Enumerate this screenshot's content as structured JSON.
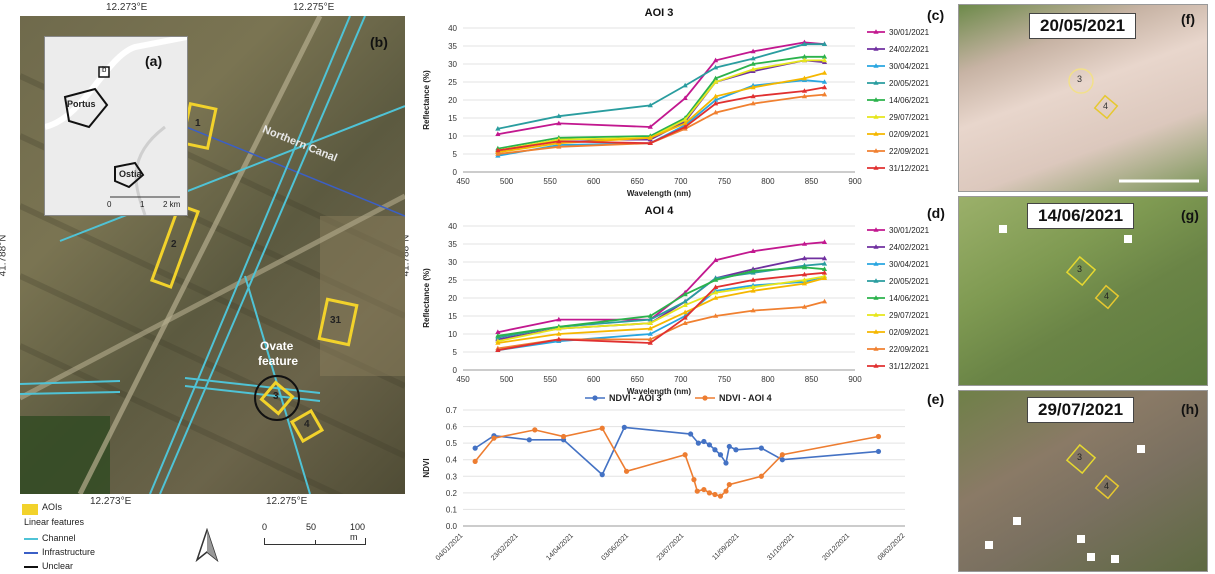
{
  "map": {
    "top_ticks": [
      "12.273°E",
      "12.275°E"
    ],
    "bottom_ticks": [
      "12.273°E",
      "12.275°E"
    ],
    "left_tick": "41.788°N",
    "right_tick": "41.788°N",
    "panel_a": "(a)",
    "panel_b": "(b)",
    "canal_label": "Northern Canal",
    "ovate_label": "Ovate",
    "ovate_label2": "feature",
    "aois": [
      "1",
      "2",
      "31",
      "3",
      "4"
    ],
    "inset": {
      "box_label": "b",
      "portus": "Portus",
      "ostia": "Ostia",
      "scale_ticks": [
        "0",
        "1",
        "2 km"
      ]
    },
    "legend": {
      "aois": "AOIs",
      "title": "Linear features",
      "channel": "Channel",
      "infrastructure": "Infrastructure",
      "unclear": "Unclear",
      "channel_color": "#4fc3d6",
      "infrastructure_color": "#3b5fc6",
      "unclear_color": "#111111",
      "aoi_color": "#f2d22b"
    },
    "scale_ticks": [
      "0",
      "50",
      "100 m"
    ]
  },
  "thumbs": [
    {
      "label": "(f)",
      "date": "20/05/2021",
      "aois": [
        "3",
        "4"
      ]
    },
    {
      "label": "(g)",
      "date": "14/06/2021",
      "aois": [
        "3",
        "4"
      ]
    },
    {
      "label": "(h)",
      "date": "29/07/2021",
      "aois": [
        "3",
        "4"
      ]
    }
  ],
  "chart_data": [
    {
      "type": "line",
      "panel": "(c)",
      "title": "AOI 3",
      "xlabel": "Wavelength (nm)",
      "ylabel": "Reflectance (%)",
      "xlim": [
        450,
        900
      ],
      "ylim": [
        0,
        40
      ],
      "xticks": [
        450,
        500,
        550,
        600,
        650,
        700,
        750,
        800,
        850,
        900
      ],
      "yticks": [
        0,
        5,
        10,
        15,
        20,
        25,
        30,
        35,
        40
      ],
      "x": [
        490,
        560,
        665,
        705,
        740,
        783,
        842,
        865
      ],
      "legend": "right",
      "series": [
        {
          "name": "30/01/2021",
          "color": "#c2188f",
          "values": [
            10.5,
            13.5,
            12.5,
            20.5,
            31,
            33.5,
            36,
            35.5
          ]
        },
        {
          "name": "24/02/2021",
          "color": "#7030a0",
          "values": [
            5.5,
            9,
            9,
            14,
            25,
            28,
            31,
            30.5
          ]
        },
        {
          "name": "30/04/2021",
          "color": "#29a6e0",
          "values": [
            4.5,
            7.5,
            8,
            13,
            20,
            24,
            25.5,
            25
          ]
        },
        {
          "name": "20/05/2021",
          "color": "#2a9d9f",
          "values": [
            12,
            15.5,
            18.5,
            24,
            29,
            31.5,
            35.5,
            35.5
          ]
        },
        {
          "name": "14/06/2021",
          "color": "#2bb24c",
          "values": [
            6.5,
            9.5,
            10,
            15,
            26,
            30,
            32,
            32
          ]
        },
        {
          "name": "29/07/2021",
          "color": "#e6e61c",
          "values": [
            6,
            9,
            9.5,
            14.5,
            25,
            28.5,
            31,
            31
          ]
        },
        {
          "name": "02/09/2021",
          "color": "#f5b700",
          "values": [
            5.5,
            8,
            9.5,
            13.5,
            21,
            23.5,
            26,
            27.5
          ]
        },
        {
          "name": "22/09/2021",
          "color": "#f08030",
          "values": [
            5,
            7,
            8,
            12,
            16.5,
            19,
            21,
            21.5
          ]
        },
        {
          "name": "31/12/2021",
          "color": "#e03030",
          "values": [
            6,
            8.5,
            8,
            12.5,
            19,
            21,
            22.5,
            23.5
          ]
        }
      ]
    },
    {
      "type": "line",
      "panel": "(d)",
      "title": "AOI 4",
      "xlabel": "Wavelength (nm)",
      "ylabel": "Reflectance (%)",
      "xlim": [
        450,
        900
      ],
      "ylim": [
        0,
        40
      ],
      "xticks": [
        450,
        500,
        550,
        600,
        650,
        700,
        750,
        800,
        850,
        900
      ],
      "yticks": [
        0,
        5,
        10,
        15,
        20,
        25,
        30,
        35,
        40
      ],
      "x": [
        490,
        560,
        665,
        705,
        740,
        783,
        842,
        865
      ],
      "legend": "right",
      "series": [
        {
          "name": "30/01/2021",
          "color": "#c2188f",
          "values": [
            10.5,
            14,
            14,
            21.5,
            30.5,
            33,
            35,
            35.5
          ]
        },
        {
          "name": "24/02/2021",
          "color": "#7030a0",
          "values": [
            8.5,
            11.5,
            13,
            19,
            25.5,
            28,
            31,
            31
          ]
        },
        {
          "name": "30/04/2021",
          "color": "#29a6e0",
          "values": [
            5.5,
            8,
            10,
            15,
            22,
            23.5,
            24.5,
            26
          ]
        },
        {
          "name": "20/05/2021",
          "color": "#2a9d9f",
          "values": [
            9,
            12,
            14,
            19,
            25.5,
            27,
            29,
            29.5
          ]
        },
        {
          "name": "14/06/2021",
          "color": "#2bb24c",
          "values": [
            9.5,
            12,
            15,
            21,
            25,
            27.5,
            28.5,
            28
          ]
        },
        {
          "name": "29/07/2021",
          "color": "#e6e61c",
          "values": [
            8,
            11.5,
            13,
            18,
            21.5,
            23,
            25,
            26
          ]
        },
        {
          "name": "02/09/2021",
          "color": "#f5b700",
          "values": [
            7.5,
            10,
            11.5,
            16,
            20,
            22,
            24,
            25.5
          ]
        },
        {
          "name": "22/09/2021",
          "color": "#f08030",
          "values": [
            6,
            8.5,
            8.5,
            13,
            15,
            16.5,
            17.5,
            19
          ]
        },
        {
          "name": "31/12/2021",
          "color": "#e03030",
          "values": [
            5.5,
            8.5,
            7.5,
            14.5,
            23,
            25,
            26.5,
            27
          ]
        }
      ]
    },
    {
      "type": "line",
      "panel": "(e)",
      "xlabel": "",
      "ylabel": "NDVI",
      "ylim": [
        0,
        0.7
      ],
      "yticks": [
        0,
        0.1,
        0.2,
        0.3,
        0.4,
        0.5,
        0.6,
        0.7
      ],
      "xlim": [
        "04/01/2021",
        "08/02/2022"
      ],
      "xticks": [
        "04/01/2021",
        "23/02/2021",
        "14/04/2021",
        "03/06/2021",
        "23/07/2021",
        "11/09/2021",
        "31/10/2021",
        "20/12/2021",
        "08/02/2022"
      ],
      "legend": "top",
      "series": [
        {
          "name": "NDVI - AOI 3",
          "color": "#4472c4",
          "points": [
            [
              "15/01/2021",
              0.47
            ],
            [
              "01/02/2021",
              0.545
            ],
            [
              "05/03/2021",
              0.52
            ],
            [
              "05/04/2021",
              0.52
            ],
            [
              "10/05/2021",
              0.31
            ],
            [
              "30/05/2021",
              0.595
            ],
            [
              "29/07/2021",
              0.555
            ],
            [
              "05/08/2021",
              0.5
            ],
            [
              "10/08/2021",
              0.51
            ],
            [
              "15/08/2021",
              0.49
            ],
            [
              "20/08/2021",
              0.46
            ],
            [
              "25/08/2021",
              0.43
            ],
            [
              "30/08/2021",
              0.38
            ],
            [
              "02/09/2021",
              0.48
            ],
            [
              "08/09/2021",
              0.46
            ],
            [
              "01/10/2021",
              0.47
            ],
            [
              "20/10/2021",
              0.4
            ],
            [
              "15/01/2022",
              0.45
            ]
          ]
        },
        {
          "name": "NDVI - AOI 4",
          "color": "#ed7d31",
          "points": [
            [
              "15/01/2021",
              0.39
            ],
            [
              "01/02/2021",
              0.53
            ],
            [
              "10/03/2021",
              0.58
            ],
            [
              "05/04/2021",
              0.54
            ],
            [
              "10/05/2021",
              0.59
            ],
            [
              "01/06/2021",
              0.33
            ],
            [
              "24/07/2021",
              0.43
            ],
            [
              "01/08/2021",
              0.28
            ],
            [
              "04/08/2021",
              0.21
            ],
            [
              "10/08/2021",
              0.22
            ],
            [
              "15/08/2021",
              0.2
            ],
            [
              "20/08/2021",
              0.19
            ],
            [
              "25/08/2021",
              0.18
            ],
            [
              "30/08/2021",
              0.21
            ],
            [
              "02/09/2021",
              0.25
            ],
            [
              "01/10/2021",
              0.3
            ],
            [
              "20/10/2021",
              0.43
            ],
            [
              "15/01/2022",
              0.54
            ]
          ]
        }
      ]
    }
  ]
}
